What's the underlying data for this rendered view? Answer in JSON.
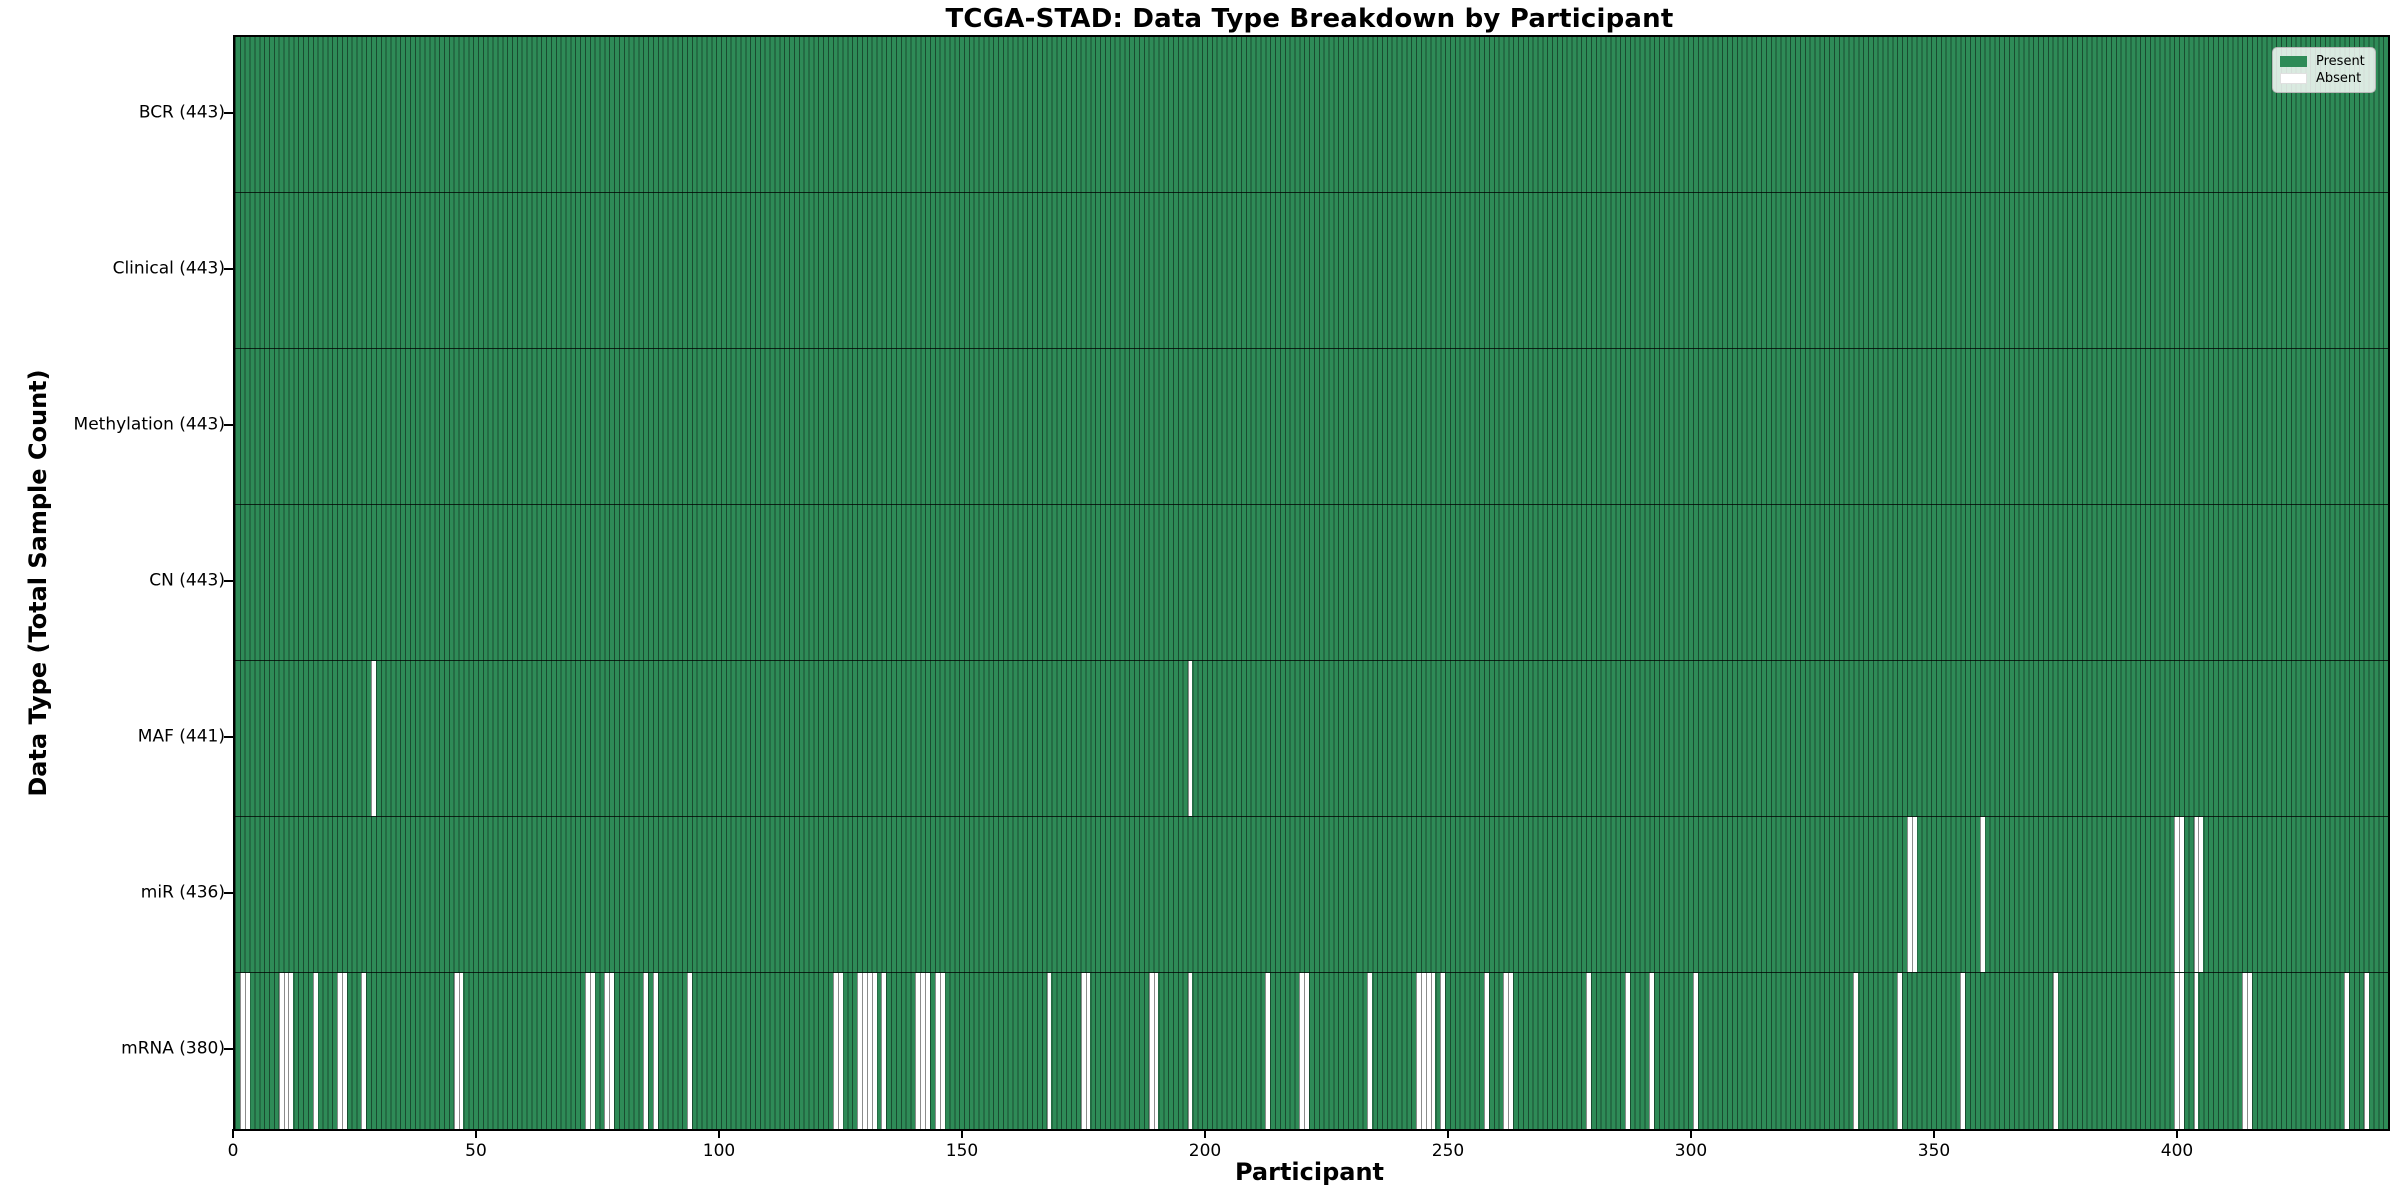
{
  "title": "TCGA-STAD: Data Type Breakdown by Participant",
  "xlabel": "Participant",
  "ylabel": "Data Type (Total Sample Count)",
  "legend": {
    "entries": [
      {
        "label": "Present",
        "color": "#2e8b57",
        "border": "#2e8b57"
      },
      {
        "label": "Absent",
        "color": "#ffffff",
        "border": "#e0e0e0"
      }
    ]
  },
  "colors": {
    "present": "#2e8b57",
    "absent": "#ffffff",
    "bar_edge": "rgba(0,0,0,0.45)",
    "spine": "#000000"
  },
  "chart_data": {
    "type": "heatmap",
    "title": "TCGA-STAD: Data Type Breakdown by Participant",
    "xlabel": "Participant",
    "ylabel": "Data Type (Total Sample Count)",
    "x_range": [
      0,
      443
    ],
    "n_participants": 443,
    "x_ticks": [
      0,
      50,
      100,
      150,
      200,
      250,
      300,
      350,
      400
    ],
    "legend_position": "upper right",
    "grid": false,
    "cell_values": {
      "present": 1,
      "absent": 0
    },
    "rows": [
      {
        "name": "BCR",
        "label": "BCR (443)",
        "total": 443,
        "absent_participants": []
      },
      {
        "name": "Clinical",
        "label": "Clinical (443)",
        "total": 443,
        "absent_participants": []
      },
      {
        "name": "Methylation",
        "label": "Methylation (443)",
        "total": 443,
        "absent_participants": []
      },
      {
        "name": "CN",
        "label": "CN (443)",
        "total": 443,
        "absent_participants": []
      },
      {
        "name": "MAF",
        "label": "MAF (441)",
        "total": 441,
        "absent_participants": [
          28,
          196
        ]
      },
      {
        "name": "miR",
        "label": "miR (436)",
        "total": 436,
        "absent_participants": [
          344,
          345,
          359,
          399,
          400,
          403,
          404
        ]
      },
      {
        "name": "mRNA",
        "label": "mRNA (380)",
        "total": 380,
        "absent_participants": [
          1,
          2,
          9,
          10,
          11,
          16,
          21,
          22,
          26,
          45,
          46,
          72,
          73,
          76,
          77,
          84,
          86,
          93,
          123,
          124,
          128,
          129,
          130,
          131,
          133,
          140,
          141,
          142,
          144,
          145,
          167,
          174,
          175,
          188,
          189,
          196,
          212,
          219,
          220,
          233,
          243,
          244,
          245,
          246,
          248,
          257,
          261,
          262,
          278,
          286,
          291,
          300,
          333,
          342,
          355,
          374,
          399,
          400,
          403,
          413,
          414,
          434,
          438
        ]
      }
    ]
  }
}
